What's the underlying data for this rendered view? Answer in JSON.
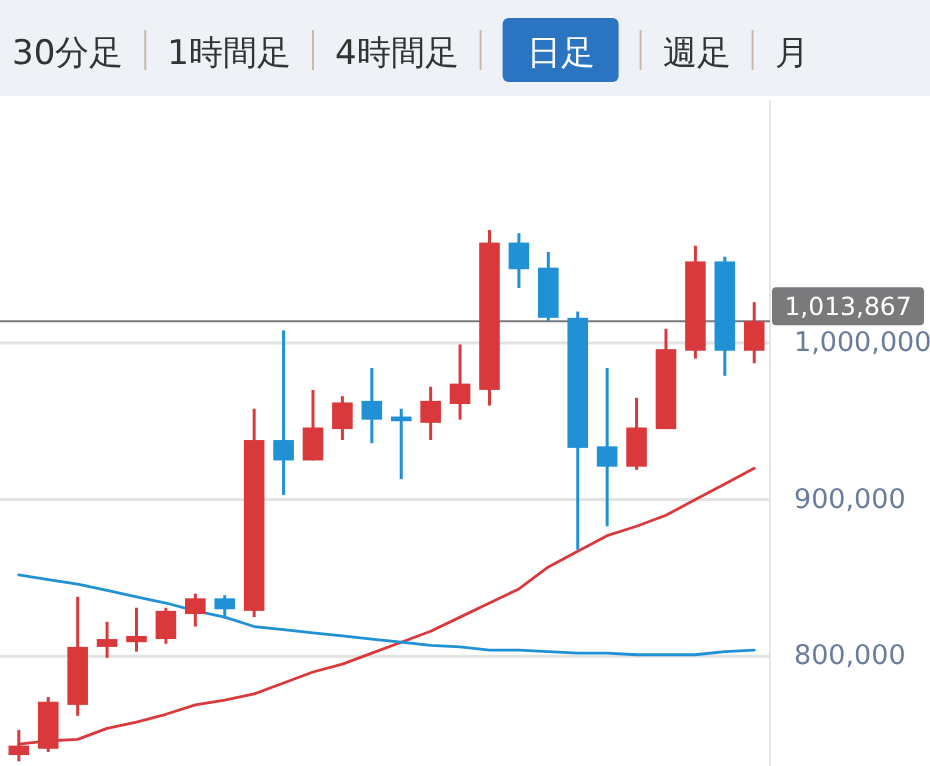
{
  "chart_data": {
    "type": "candlestick",
    "annotations": [
      "30分足",
      "1時間足",
      "4時間足",
      "日足",
      "週足",
      "月"
    ],
    "categories": [
      null,
      null,
      null,
      null,
      null,
      null,
      null,
      null,
      null,
      null,
      null,
      null,
      null,
      null,
      null,
      null,
      null,
      null,
      null,
      null,
      null,
      null,
      null,
      null,
      null,
      null
    ],
    "ohlc": [
      [
        737000,
        753000,
        733000,
        743000
      ],
      [
        741000,
        774000,
        739000,
        771000
      ],
      [
        769000,
        838000,
        762000,
        806000
      ],
      [
        806000,
        822000,
        799000,
        811000
      ],
      [
        809000,
        831000,
        803000,
        813000
      ],
      [
        811000,
        831000,
        808000,
        829000
      ],
      [
        827000,
        840000,
        819000,
        837000
      ],
      [
        837000,
        839000,
        824000,
        830000
      ],
      [
        829000,
        958000,
        825000,
        938000
      ],
      [
        938000,
        1008000,
        903000,
        925000
      ],
      [
        925000,
        970000,
        925000,
        946000
      ],
      [
        945000,
        966000,
        938000,
        962000
      ],
      [
        963000,
        984000,
        936000,
        951000
      ],
      [
        953000,
        958000,
        913000,
        950000
      ],
      [
        949000,
        972000,
        938000,
        963000
      ],
      [
        961000,
        999000,
        951000,
        974000
      ],
      [
        970000,
        1072000,
        960000,
        1064000
      ],
      [
        1064000,
        1070000,
        1035000,
        1047000
      ],
      [
        1048000,
        1058000,
        1014000,
        1016000
      ],
      [
        1016000,
        1020000,
        868000,
        933000
      ],
      [
        934000,
        984000,
        883000,
        921000
      ],
      [
        921000,
        965000,
        919000,
        946000
      ],
      [
        945000,
        1009000,
        945000,
        996000
      ],
      [
        995000,
        1062000,
        990000,
        1052000
      ],
      [
        1052000,
        1055000,
        979000,
        995000
      ],
      [
        995000,
        1026000,
        987000,
        1013867
      ]
    ],
    "colors": [
      "#d9393b",
      "#d9393b",
      "#d9393b",
      "#d9393b",
      "#d9393b",
      "#d9393b",
      "#d9393b",
      "#2091d5",
      "#d9393b",
      "#2091d5",
      "#d9393b",
      "#d9393b",
      "#2091d5",
      "#2091d5",
      "#d9393b",
      "#d9393b",
      "#d9393b",
      "#2091d5",
      "#2091d5",
      "#2091d5",
      "#2091d5",
      "#d9393b",
      "#d9393b",
      "#d9393b",
      "#2091d5",
      "#d9393b"
    ],
    "series": [
      {
        "type": "line",
        "color": "#d9393b",
        "values": [
          744000,
          746000,
          747000,
          754000,
          758000,
          763000,
          769000,
          772000,
          776000,
          783000,
          790000,
          795000,
          802000,
          809000,
          816000,
          825000,
          834000,
          843000,
          857000,
          867000,
          877000,
          883000,
          890000,
          900000,
          910000,
          920000
        ]
      },
      {
        "type": "line",
        "color": "#2091d5",
        "values": [
          852000,
          849000,
          846000,
          842000,
          838000,
          834000,
          829000,
          825000,
          819000,
          817000,
          815000,
          813000,
          811000,
          809000,
          807000,
          806000,
          804000,
          804000,
          803000,
          802000,
          802000,
          801000,
          801000,
          801000,
          803000,
          804000
        ]
      }
    ],
    "yticks": [
      {
        "value": 800000,
        "label": "800,000"
      },
      {
        "value": 900000,
        "label": "900,000"
      },
      {
        "value": 1000000,
        "label": "1,000,000"
      }
    ],
    "ylim": [
      730000,
      1155000
    ],
    "grid": "y",
    "tick_labels": "y",
    "legend": false,
    "ref_lines": [
      {
        "axis": "y",
        "value": 1013867,
        "label": "1,013,867",
        "color": "#7a7a7c"
      }
    ]
  }
}
